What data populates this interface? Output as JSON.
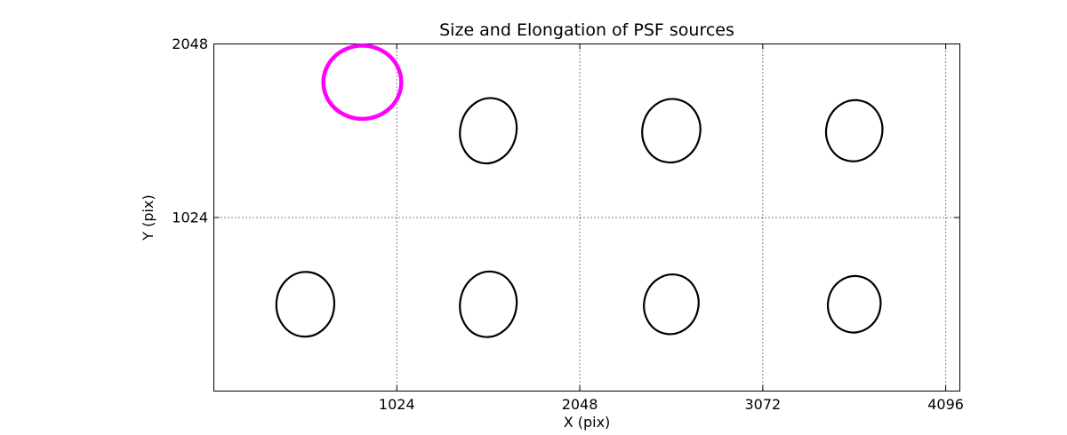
{
  "chart_data": {
    "type": "scatter",
    "title": "Size and Elongation of PSF sources",
    "xlabel": "X (pix)",
    "ylabel": "Y (pix)",
    "xlim": [
      0,
      4175
    ],
    "ylim": [
      0,
      2048
    ],
    "xticks": [
      1024,
      2048,
      3072,
      4096
    ],
    "yticks": [
      1024,
      2048
    ],
    "grid": "dotted",
    "legend": "none",
    "marker": "ellipse",
    "colors": {
      "normal": "#000000",
      "highlight": "#ff00ff",
      "background": "#ffffff"
    },
    "sources": [
      {
        "x": 512,
        "y": 512,
        "rx": 162,
        "ry": 191,
        "angle": 4,
        "color": "#000000",
        "lw": 2.2,
        "highlight": false
      },
      {
        "x": 1536,
        "y": 512,
        "rx": 158,
        "ry": 194,
        "angle": 10,
        "color": "#000000",
        "lw": 2.2,
        "highlight": false
      },
      {
        "x": 2560,
        "y": 512,
        "rx": 152,
        "ry": 177,
        "angle": 14,
        "color": "#000000",
        "lw": 2.2,
        "highlight": false
      },
      {
        "x": 3584,
        "y": 512,
        "rx": 147,
        "ry": 167,
        "angle": 12,
        "color": "#000000",
        "lw": 2.2,
        "highlight": false
      },
      {
        "x": 1536,
        "y": 1536,
        "rx": 157,
        "ry": 194,
        "angle": 14,
        "color": "#000000",
        "lw": 2.2,
        "highlight": false
      },
      {
        "x": 2560,
        "y": 1536,
        "rx": 162,
        "ry": 188,
        "angle": 12,
        "color": "#000000",
        "lw": 2.2,
        "highlight": false
      },
      {
        "x": 3584,
        "y": 1536,
        "rx": 157,
        "ry": 181,
        "angle": 12,
        "color": "#000000",
        "lw": 2.2,
        "highlight": false
      },
      {
        "x": 831,
        "y": 1822,
        "rx": 218,
        "ry": 216,
        "angle": 0,
        "color": "#ff00ff",
        "lw": 4.5,
        "highlight": true
      }
    ]
  }
}
